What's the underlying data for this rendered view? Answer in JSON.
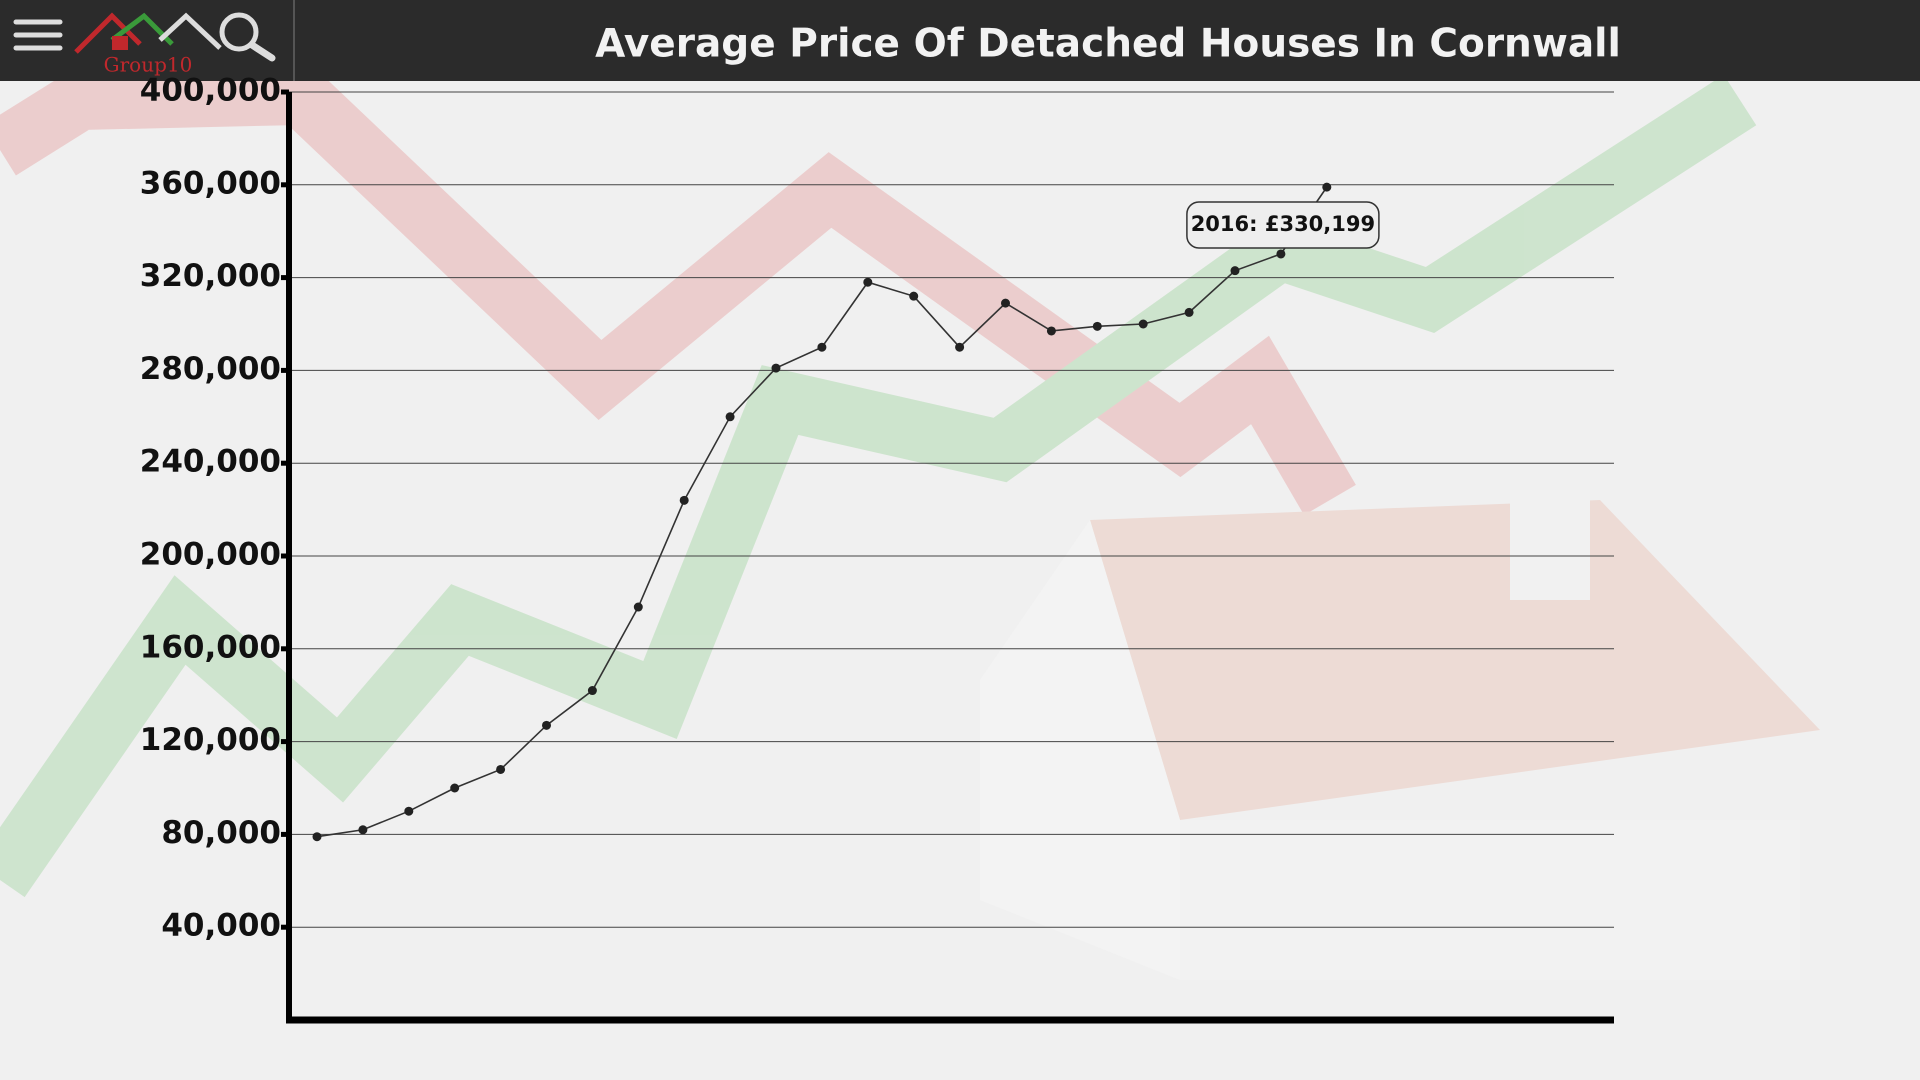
{
  "header": {
    "logo": "Group10"
  },
  "chart_data": {
    "type": "line",
    "title": "Average Price Of Detached Houses In Cornwall",
    "categories": [
      null,
      null,
      null,
      null,
      null,
      null,
      null,
      null,
      null,
      null,
      null,
      null,
      null,
      null,
      null,
      null,
      null,
      null,
      null,
      null,
      null,
      null,
      null
    ],
    "values": [
      79000,
      82000,
      90000,
      100000,
      108000,
      127000,
      142000,
      178000,
      224000,
      260000,
      281000,
      290000,
      318000,
      312000,
      290000,
      309000,
      297000,
      299000,
      300000,
      305000,
      323000,
      330199,
      359000
    ],
    "value_labels": [
      null,
      null,
      null,
      null,
      null,
      null,
      null,
      null,
      null,
      null,
      null,
      null,
      null,
      null,
      null,
      null,
      null,
      null,
      null,
      null,
      null,
      "2016: £330,199",
      null
    ],
    "color": "#333333",
    "ylim": [
      0,
      400000
    ],
    "yticks": [
      {
        "value": 40000,
        "label": "40,000"
      },
      {
        "value": 80000,
        "label": "80,000"
      },
      {
        "value": 120000,
        "label": "120,000"
      },
      {
        "value": 160000,
        "label": "160,000"
      },
      {
        "value": 200000,
        "label": "200,000"
      },
      {
        "value": 240000,
        "label": "240,000"
      },
      {
        "value": 280000,
        "label": "280,000"
      },
      {
        "value": 320000,
        "label": "320,000"
      },
      {
        "value": 360000,
        "label": "360,000"
      },
      {
        "value": 400000,
        "label": "400,000"
      }
    ],
    "grid": true
  }
}
